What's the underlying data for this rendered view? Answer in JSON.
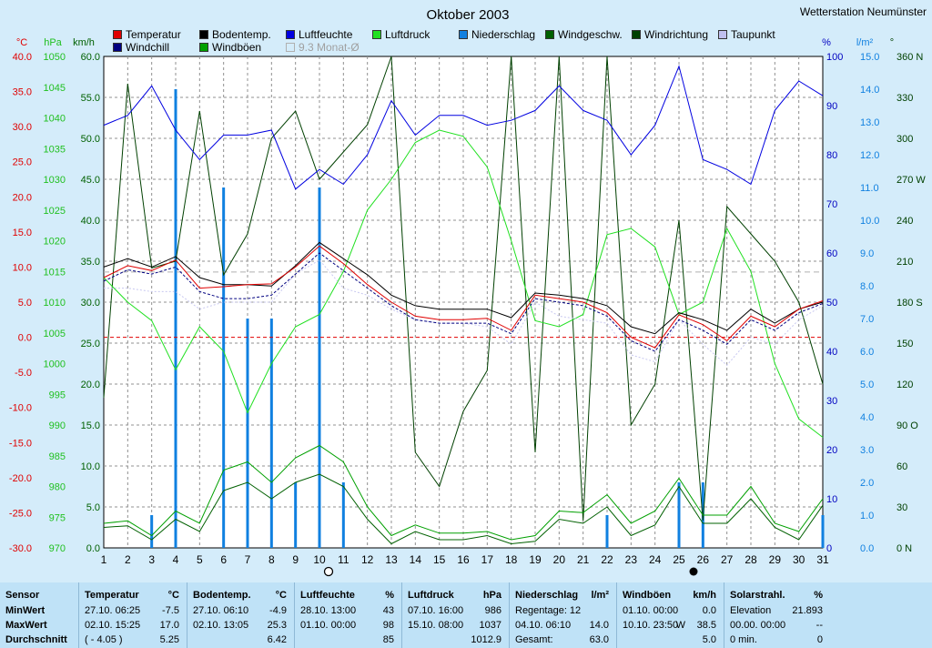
{
  "title": "Oktober 2003",
  "station": "Wetterstation Neumünster",
  "legend": [
    {
      "label": "Temperatur",
      "color": "#e00000"
    },
    {
      "label": "Windchill",
      "color": "#000080"
    },
    {
      "label": "Bodentemp.",
      "color": "#000000"
    },
    {
      "label": "Windböen",
      "color": "#00a000"
    },
    {
      "label": "Luftfeuchte",
      "color": "#0000e0"
    },
    {
      "label": "9.3 Monat-Ø",
      "color": "#d4ecfa"
    },
    {
      "label": "Luftdruck",
      "color": "#20e020"
    },
    {
      "label": "Niederschlag",
      "color": "#1080e0"
    },
    {
      "label": "Windgeschw.",
      "color": "#006000"
    },
    {
      "label": "Windrichtung",
      "color": "#004000"
    },
    {
      "label": "Taupunkt",
      "color": "#c0c0f0"
    }
  ],
  "axes": {
    "celsius_unit": "°C",
    "hpa_unit": "hPa",
    "kmh_unit": "km/h",
    "pct_unit": "%",
    "lm2_unit": "l/m²",
    "deg_unit": "°",
    "celsius_ticks": [
      "40.0",
      "35.0",
      "30.0",
      "25.0",
      "20.0",
      "15.0",
      "10.0",
      "5.0",
      "0.0",
      "-5.0",
      "-10.0",
      "-15.0",
      "-20.0",
      "-25.0",
      "-30.0"
    ],
    "hpa_ticks": [
      "1050",
      "1045",
      "1040",
      "1035",
      "1030",
      "1025",
      "1020",
      "1015",
      "1010",
      "1005",
      "1000",
      "995",
      "990",
      "985",
      "980",
      "975",
      "970"
    ],
    "kmh_ticks": [
      "60.0",
      "55.0",
      "50.0",
      "45.0",
      "40.0",
      "35.0",
      "30.0",
      "25.0",
      "20.0",
      "15.0",
      "10.0",
      "5.0",
      "0.0"
    ],
    "pct_ticks": [
      "100",
      "90",
      "80",
      "70",
      "60",
      "50",
      "40",
      "30",
      "20",
      "10",
      "0"
    ],
    "lm2_ticks": [
      "15.0",
      "14.0",
      "13.0",
      "12.0",
      "11.0",
      "10.0",
      "9.0",
      "8.0",
      "7.0",
      "6.0",
      "5.0",
      "4.0",
      "3.0",
      "2.0",
      "1.0",
      "0.0"
    ],
    "deg_ticks": [
      "360 N",
      "330",
      "300",
      "270 W",
      "240",
      "210",
      "180 S",
      "150",
      "120",
      "90 O",
      "60",
      "30",
      "0 N"
    ],
    "x_ticks": [
      "1",
      "2",
      "3",
      "4",
      "5",
      "6",
      "7",
      "8",
      "9",
      "10",
      "11",
      "12",
      "13",
      "14",
      "15",
      "16",
      "17",
      "18",
      "19",
      "20",
      "21",
      "22",
      "23",
      "24",
      "25",
      "26",
      "27",
      "28",
      "29",
      "30",
      "31"
    ]
  },
  "chart_data": {
    "type": "line",
    "x": [
      1,
      2,
      3,
      4,
      5,
      6,
      7,
      8,
      9,
      10,
      11,
      12,
      13,
      14,
      15,
      16,
      17,
      18,
      19,
      20,
      21,
      22,
      23,
      24,
      25,
      26,
      27,
      28,
      29,
      30,
      31
    ],
    "series": [
      {
        "name": "Temperatur",
        "unit": "°C",
        "values": [
          8.5,
          10.2,
          9.5,
          11.0,
          7.0,
          7.2,
          7.5,
          7.6,
          10.0,
          13.0,
          10.5,
          7.5,
          5.0,
          3.0,
          2.5,
          2.5,
          2.7,
          1.0,
          6.0,
          5.5,
          5.0,
          3.5,
          0.0,
          -1.5,
          3.2,
          1.8,
          -0.5,
          3.0,
          1.5,
          4.0,
          5.2
        ]
      },
      {
        "name": "Windchill",
        "unit": "°C",
        "values": [
          8.0,
          9.6,
          9.0,
          10.0,
          6.5,
          5.5,
          5.5,
          6.0,
          9.0,
          12.0,
          9.5,
          7.0,
          4.5,
          2.5,
          2.0,
          2.0,
          2.0,
          0.5,
          5.5,
          5.0,
          4.5,
          3.0,
          -0.5,
          -2.0,
          2.5,
          1.0,
          -1.0,
          2.5,
          1.0,
          3.5,
          4.8
        ]
      },
      {
        "name": "Bodentemp.",
        "unit": "°C",
        "values": [
          10.0,
          11.2,
          10.0,
          11.5,
          8.5,
          7.5,
          7.5,
          7.3,
          10.2,
          13.5,
          11.2,
          8.9,
          6.0,
          4.5,
          4.0,
          4.0,
          4.0,
          2.8,
          6.3,
          6.0,
          5.5,
          4.5,
          1.5,
          0.5,
          3.5,
          2.5,
          1.0,
          4.0,
          2.0,
          4.0,
          5.0
        ]
      },
      {
        "name": "Taupunkt",
        "unit": "°C",
        "values": [
          7.0,
          7.0,
          6.5,
          6.5,
          4.0,
          5.0,
          5.0,
          5.0,
          9.0,
          11.0,
          7.0,
          6.0,
          4.0,
          2.5,
          2.0,
          2.0,
          1.5,
          -1.0,
          5.0,
          3.0,
          2.5,
          2.0,
          -2.5,
          -3.5,
          2.5,
          -1.0,
          -4.0,
          0.0,
          -1.0,
          2.5,
          4.5
        ]
      },
      {
        "name": "Luftdruck",
        "unit": "hPa",
        "values": [
          1014,
          1010,
          1007,
          999,
          1006,
          1002,
          992,
          1000,
          1006,
          1008,
          1015,
          1025,
          1030,
          1036,
          1038,
          1037,
          1032,
          1020,
          1007,
          1006,
          1008,
          1021,
          1022,
          1019,
          1008,
          1010,
          1022,
          1015,
          1000,
          991,
          988
        ]
      },
      {
        "name": "Luftfeuchte",
        "unit": "%",
        "values": [
          86,
          88,
          94,
          85,
          79,
          84,
          84,
          85,
          73,
          77,
          74,
          80,
          91,
          84,
          88,
          88,
          86,
          87,
          89,
          94,
          89,
          87,
          80,
          86,
          98,
          79,
          77,
          74,
          89,
          95,
          92
        ]
      },
      {
        "name": "Windgeschw.",
        "unit": "km/h",
        "values": [
          2.5,
          2.7,
          1.0,
          3.5,
          2.0,
          7.0,
          8.0,
          6.0,
          8.0,
          9.0,
          7.5,
          3.5,
          0.5,
          2.0,
          1.0,
          1.0,
          1.5,
          0.5,
          0.8,
          3.5,
          3.0,
          5.0,
          1.5,
          2.8,
          7.5,
          3.0,
          3.0,
          6.0,
          2.5,
          1.0,
          5.2
        ]
      },
      {
        "name": "Windböen",
        "unit": "km/h",
        "values": [
          3.0,
          3.3,
          1.5,
          4.5,
          3.0,
          9.5,
          10.5,
          8.0,
          11.0,
          12.5,
          10.5,
          5.0,
          1.5,
          2.8,
          1.8,
          1.8,
          2.0,
          1.0,
          1.5,
          4.5,
          4.3,
          6.5,
          3.0,
          4.5,
          8.5,
          4.0,
          4.0,
          7.5,
          3.0,
          2.0,
          6.0
        ]
      },
      {
        "name": "Windrichtung",
        "unit": "°",
        "values": [
          110,
          340,
          205,
          210,
          320,
          200,
          230,
          300,
          320,
          270,
          290,
          310,
          360,
          70,
          45,
          100,
          130,
          360,
          70,
          360,
          20,
          360,
          90,
          120,
          240,
          20,
          250,
          230,
          210,
          180,
          120
        ]
      },
      {
        "name": "Niederschlag",
        "unit": "l/m²",
        "values": [
          0,
          0,
          1.0,
          14.0,
          0,
          11.0,
          7.0,
          7.0,
          2.0,
          11.0,
          2.0,
          0,
          0,
          0,
          0,
          0,
          0,
          0,
          0,
          0,
          0,
          1.0,
          0,
          0,
          2.0,
          2.0,
          0,
          0,
          0,
          0,
          1.0
        ]
      }
    ],
    "reference_lines": [
      {
        "name": "Monat-Ø",
        "unit": "°C",
        "value": 9.3
      },
      {
        "name": "0",
        "unit": "°C",
        "value": 0
      }
    ],
    "ranges": {
      "celsius": [
        -30,
        40
      ],
      "hpa": [
        970,
        1050
      ],
      "kmh": [
        0,
        60
      ],
      "pct": [
        0,
        100
      ],
      "lm2": [
        0,
        15
      ],
      "deg": [
        0,
        360
      ]
    }
  },
  "stats": [
    {
      "title": "Sensor",
      "unit": "",
      "rows": [
        [
          "MinWert",
          "",
          ""
        ],
        [
          "MaxWert",
          "",
          ""
        ],
        [
          "Durchschnitt",
          "",
          ""
        ]
      ]
    },
    {
      "title": "Temperatur",
      "unit": "°C",
      "rows": [
        [
          "27.10.  06:25",
          "",
          "-7.5"
        ],
        [
          "02.10.  15:25",
          "",
          "17.0"
        ],
        [
          "( - 4.05 )",
          "",
          "5.25"
        ]
      ]
    },
    {
      "title": "Bodentemp.",
      "unit": "°C",
      "rows": [
        [
          "27.10.  06:10",
          "",
          "-4.9"
        ],
        [
          "02.10.  13:05",
          "",
          "25.3"
        ],
        [
          "",
          "",
          "6.42"
        ]
      ]
    },
    {
      "title": "Luftfeuchte",
      "unit": "%",
      "rows": [
        [
          "28.10.  13:00",
          "",
          "43"
        ],
        [
          "01.10.  00:00",
          "",
          "98"
        ],
        [
          "",
          "",
          "85"
        ]
      ]
    },
    {
      "title": "Luftdruck",
      "unit": "hPa",
      "rows": [
        [
          "07.10.  16:00",
          "",
          "986"
        ],
        [
          "15.10.  08:00",
          "",
          "1037"
        ],
        [
          "",
          "",
          "1012.9"
        ]
      ]
    },
    {
      "title": "Niederschlag",
      "unit": "l/m²",
      "rows": [
        [
          "Regentage: 12",
          "",
          ""
        ],
        [
          "04.10.  06:10",
          "",
          "14.0"
        ],
        [
          "Gesamt:",
          "",
          "63.0"
        ]
      ]
    },
    {
      "title": "Windböen",
      "unit": "km/h",
      "rows": [
        [
          "01.10.  00:00",
          "",
          "0.0"
        ],
        [
          "10.10.  23:50",
          "W",
          "38.5"
        ],
        [
          "",
          "",
          "5.0"
        ]
      ]
    },
    {
      "title": "Solarstrahl.",
      "unit": "%",
      "rows": [
        [
          "Elevation",
          "",
          "21.893"
        ],
        [
          "00.00.  00:00",
          "",
          "--"
        ],
        [
          "0 min.",
          "",
          "0"
        ]
      ]
    }
  ]
}
